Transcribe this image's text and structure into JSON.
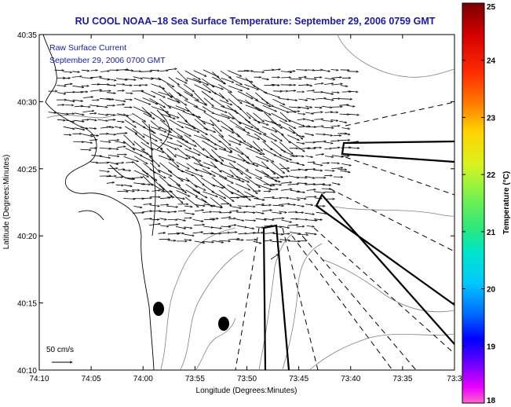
{
  "chart_data": {
    "type": "map",
    "title": "RU COOL  NOAA–18  Sea Surface Temperature:  September 29, 2006 0759 GMT",
    "subtitle_lines": [
      "Raw Surface Current",
      "September 29, 2006 0700 GMT"
    ],
    "xlabel": "Longitude (Degrees:Minutes)",
    "ylabel": "Latitude (Degrees:Minutes)",
    "x_ticks": [
      "74:10",
      "74:05",
      "74:00",
      "73:55",
      "73:50",
      "73:45",
      "73:40",
      "73:35",
      "73:3"
    ],
    "y_ticks": [
      "40:35",
      "40:30",
      "40:25",
      "40:20",
      "40:15",
      "40:10"
    ],
    "scale_label": "50 cm/s",
    "colorbar": {
      "label": "Temperature (°C)",
      "ticks": [
        "25",
        "24",
        "23",
        "22",
        "21",
        "20",
        "19",
        "18"
      ],
      "min": 18,
      "max": 25
    }
  }
}
